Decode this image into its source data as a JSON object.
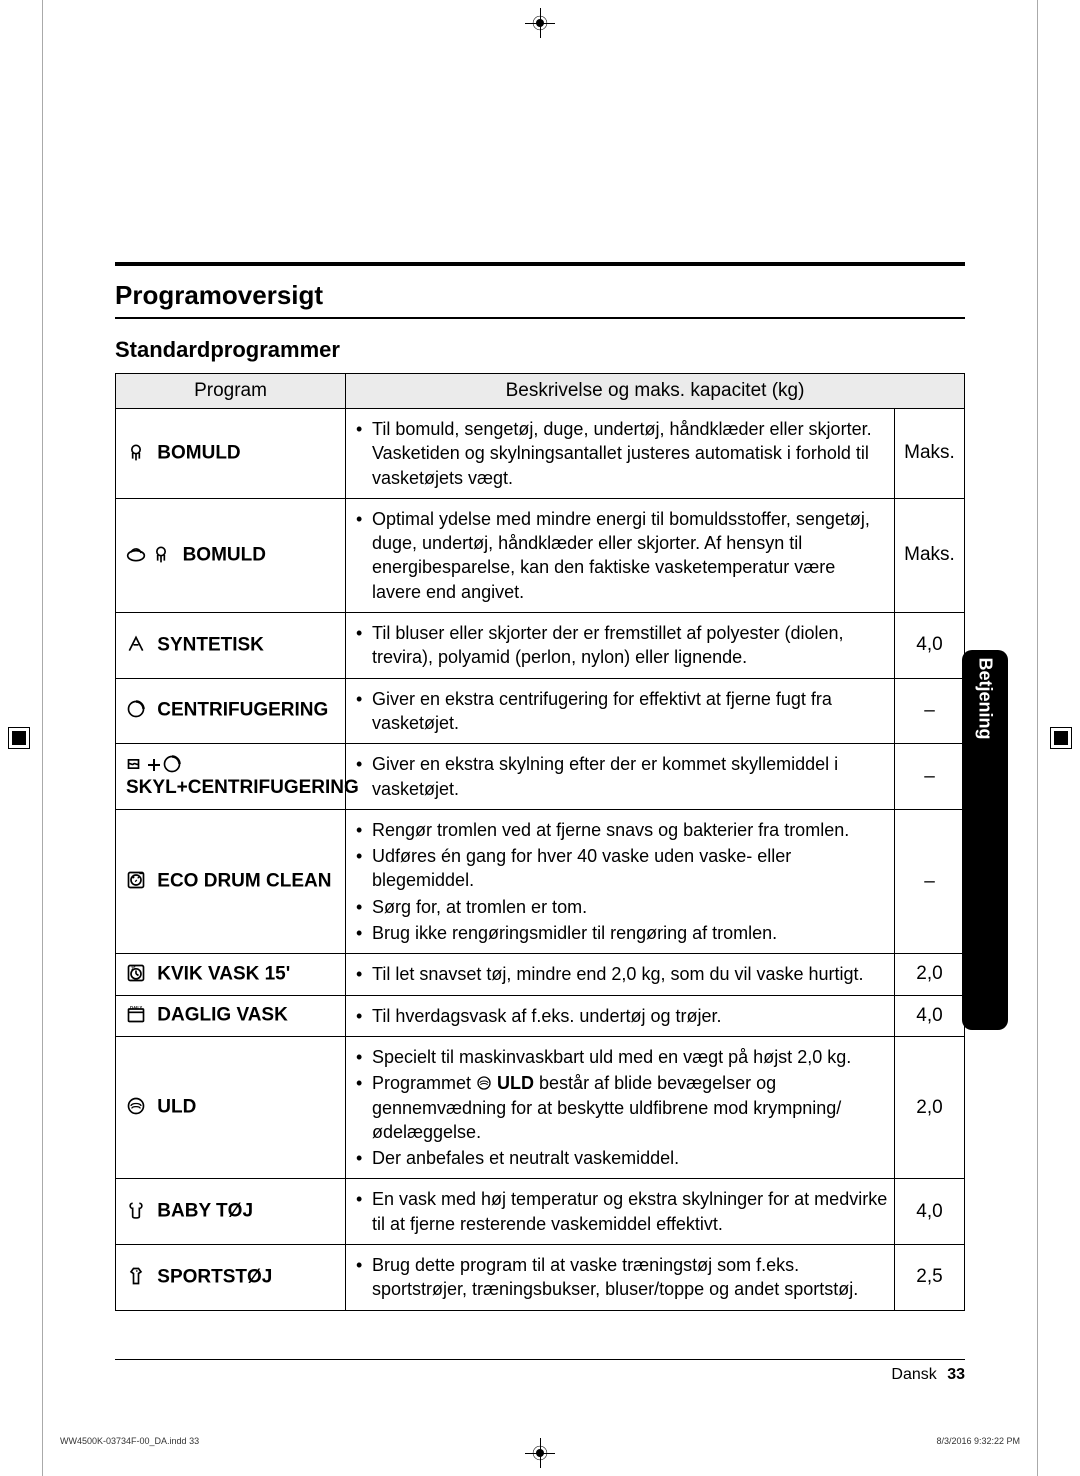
{
  "headings": {
    "title": "Programoversigt",
    "subtitle": "Standardprogrammer"
  },
  "table_headers": {
    "program": "Program",
    "description": "Beskrivelse og maks. kapacitet (kg)"
  },
  "side_tab": "Betjening",
  "footer": {
    "lang": "Dansk",
    "page": "33"
  },
  "indd": {
    "left": "WW4500K-03734F-00_DA.indd   33",
    "right": "8/3/2016   9:32:22 PM"
  },
  "rows": [
    {
      "name": "BOMULD",
      "desc": [
        "Til bomuld, sengetøj, duge, undertøj, håndklæder eller skjorter. Vasketiden og skylningsantallet justeres automatisk i forhold til vasketøjets vægt."
      ],
      "cap": "Maks."
    },
    {
      "name": "BOMULD",
      "desc": [
        "Optimal ydelse med mindre energi til bomuldsstoffer, sengetøj, duge, undertøj, håndklæder eller skjorter. Af hensyn til energibesparelse, kan den faktiske vasketemperatur være lavere end angivet."
      ],
      "cap": "Maks."
    },
    {
      "name": "SYNTETISK",
      "desc": [
        "Til bluser eller skjorter der er fremstillet af polyester (diolen, trevira), polyamid (perlon, nylon) eller lignende."
      ],
      "cap": "4,0"
    },
    {
      "name": "CENTRIFUGERING",
      "desc": [
        "Giver en ekstra centrifugering for effektivt at fjerne fugt fra vasketøjet."
      ],
      "cap": "–"
    },
    {
      "name": "SKYL+CENTRIFUGERING",
      "desc": [
        "Giver en ekstra skylning efter der er kommet skyllemiddel i vasketøjet."
      ],
      "cap": "–"
    },
    {
      "name": "ECO DRUM CLEAN",
      "desc": [
        "Rengør tromlen ved at fjerne snavs og bakterier fra tromlen.",
        "Udføres én gang for hver 40 vaske uden vaske- eller blegemiddel.",
        "Sørg for, at tromlen er tom.",
        "Brug ikke rengøringsmidler til rengøring af tromlen."
      ],
      "cap": "–"
    },
    {
      "name": "KVIK VASK 15'",
      "desc": [
        "Til let snavset tøj, mindre end 2,0 kg, som du vil vaske hurtigt."
      ],
      "cap": "2,0"
    },
    {
      "name": "DAGLIG VASK",
      "desc": [
        "Til hverdagsvask af f.eks. undertøj og trøjer."
      ],
      "cap": "4,0"
    },
    {
      "name": "ULD",
      "uld_inline_a": "Programmet ",
      "uld_inline_b": " ULD",
      "desc": [
        "Specielt til maskinvaskbart uld med en vægt på højst 2,0 kg.",
        "__ULD_LINE__",
        "Der anbefales et neutralt vaskemiddel."
      ],
      "uld_tail": " består af blide bevægelser og gennemvædning for at beskytte uldfibrene mod krympning/ødelæggelse.",
      "cap": "2,0"
    },
    {
      "name": "BABY TØJ",
      "desc": [
        "En vask med høj temperatur og ekstra skylninger for at medvirke til at fjerne resterende vaskemiddel effektivt."
      ],
      "cap": "4,0"
    },
    {
      "name": "SPORTSTØJ",
      "desc": [
        "Brug dette program til at vaske træningstøj som f.eks. sportstrøjer, træningsbukser, bluser/toppe og andet sportstøj."
      ],
      "cap": "2,5"
    }
  ]
}
